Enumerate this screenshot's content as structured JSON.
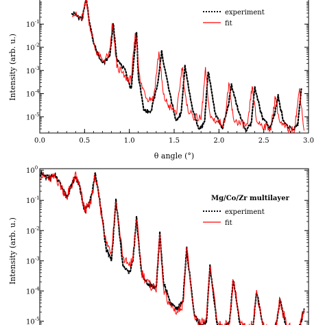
{
  "chart_data": [
    {
      "type": "line",
      "id": "top",
      "xlabel": "θ angle (°)",
      "ylabel": "Intensity (arb. u.)",
      "xlim": [
        0.0,
        3.0
      ],
      "ylim_log10": [
        -5.7,
        0.1
      ],
      "yscale": "log",
      "x_ticks": [
        "0.0",
        "0.5",
        "1.0",
        "1.5",
        "2.0",
        "2.5",
        "3.0"
      ],
      "y_ticks": [
        {
          "base": "10",
          "exp": "-5",
          "value": -5
        },
        {
          "base": "10",
          "exp": "-4",
          "value": -4
        },
        {
          "base": "10",
          "exp": "-3",
          "value": -3
        },
        {
          "base": "10",
          "exp": "-2",
          "value": -2
        },
        {
          "base": "10",
          "exp": "-1",
          "value": -1
        }
      ],
      "legend": {
        "position": "top-right",
        "entries": [
          "experiment",
          "fit"
        ]
      },
      "series": [
        {
          "name": "experiment",
          "style": "dotted",
          "color": "#000000",
          "x": [
            0.36,
            0.47,
            0.52,
            0.55,
            0.6,
            0.7,
            0.78,
            0.82,
            0.86,
            0.95,
            1.02,
            1.08,
            1.1,
            1.16,
            1.24,
            1.32,
            1.36,
            1.44,
            1.52,
            1.58,
            1.62,
            1.7,
            1.78,
            1.84,
            1.88,
            1.96,
            2.04,
            2.1,
            2.14,
            2.22,
            2.3,
            2.36,
            2.4,
            2.48,
            2.57,
            2.62,
            2.66,
            2.72,
            2.82,
            2.88,
            2.92
          ],
          "y_log10": [
            -0.5,
            -0.8,
            0.1,
            -0.8,
            -1.8,
            -2.7,
            -2.4,
            -1.0,
            -2.5,
            -3.0,
            -3.8,
            -1.3,
            -3.2,
            -4.7,
            -4.8,
            -3.5,
            -2.2,
            -3.8,
            -5.2,
            -4.8,
            -2.8,
            -4.6,
            -5.6,
            -5.2,
            -3.0,
            -4.9,
            -5.5,
            -4.6,
            -3.6,
            -4.8,
            -5.6,
            -5.3,
            -3.7,
            -5.0,
            -5.5,
            -4.9,
            -4.1,
            -5.2,
            -5.6,
            -5.3,
            -3.8
          ]
        },
        {
          "name": "fit",
          "style": "solid",
          "color": "#ff0000",
          "x": [
            0.36,
            0.47,
            0.52,
            0.55,
            0.62,
            0.7,
            0.78,
            0.81,
            0.86,
            0.95,
            1.02,
            1.07,
            1.12,
            1.2,
            1.27,
            1.33,
            1.38,
            1.45,
            1.53,
            1.59,
            1.64,
            1.72,
            1.8,
            1.85,
            1.9,
            1.98,
            2.06,
            2.11,
            2.16,
            2.24,
            2.32,
            2.37,
            2.42,
            2.5,
            2.58,
            2.63,
            2.68,
            2.76,
            2.84,
            2.9,
            2.95
          ],
          "y_log10": [
            -0.5,
            -0.8,
            0.1,
            -0.9,
            -2.1,
            -2.6,
            -2.3,
            -1.0,
            -2.8,
            -3.3,
            -3.4,
            -1.3,
            -3.5,
            -4.2,
            -4.2,
            -2.2,
            -4.1,
            -4.6,
            -4.8,
            -2.8,
            -4.6,
            -5.0,
            -5.1,
            -3.0,
            -5.0,
            -5.2,
            -5.3,
            -3.6,
            -5.1,
            -5.3,
            -5.4,
            -3.7,
            -5.2,
            -5.4,
            -5.5,
            -4.1,
            -5.3,
            -5.5,
            -5.6,
            -3.8,
            -5.6
          ]
        }
      ]
    },
    {
      "type": "line",
      "id": "bottom",
      "ylabel": "Intensity (arb. u.)",
      "annotation": "Mg/Co/Zr multilayer",
      "xlim": [
        0.0,
        3.0
      ],
      "ylim_log10": [
        -5.4,
        0.05
      ],
      "yscale": "log",
      "y_ticks": [
        {
          "base": "10",
          "exp": "0",
          "value": 0
        },
        {
          "base": "10",
          "exp": "-1",
          "value": -1
        },
        {
          "base": "10",
          "exp": "-2",
          "value": -2
        },
        {
          "base": "10",
          "exp": "-3",
          "value": -3
        },
        {
          "base": "10",
          "exp": "-4",
          "value": -4
        },
        {
          "base": "10",
          "exp": "-5",
          "value": -5
        }
      ],
      "legend": {
        "position": "right",
        "entries": [
          "experiment",
          "fit"
        ]
      },
      "series": [
        {
          "name": "experiment",
          "style": "dotted",
          "color": "#000000",
          "x": [
            0.0,
            0.1,
            0.18,
            0.26,
            0.3,
            0.34,
            0.4,
            0.44,
            0.5,
            0.56,
            0.62,
            0.68,
            0.74,
            0.8,
            0.85,
            0.93,
            1.0,
            1.04,
            1.08,
            1.14,
            1.22,
            1.3,
            1.34,
            1.38,
            1.46,
            1.54,
            1.6,
            1.64,
            1.72,
            1.8,
            1.86,
            1.9,
            1.98,
            2.06,
            2.12,
            2.16,
            2.24,
            2.32,
            2.38,
            2.42,
            2.5,
            2.58,
            2.64,
            2.68,
            2.76,
            2.84,
            2.9,
            2.95
          ],
          "y_log10": [
            -0.1,
            -0.25,
            -0.2,
            -0.6,
            -0.9,
            -0.6,
            -0.2,
            -0.5,
            -1.3,
            -1.1,
            -0.1,
            -1.2,
            -2.6,
            -3.0,
            -1.0,
            -3.2,
            -3.4,
            -3.0,
            -1.6,
            -3.5,
            -3.8,
            -3.9,
            -2.1,
            -3.7,
            -4.4,
            -4.6,
            -4.3,
            -2.6,
            -4.7,
            -5.2,
            -5.0,
            -3.2,
            -5.1,
            -5.3,
            -5.0,
            -3.6,
            -5.2,
            -5.4,
            -5.2,
            -4.0,
            -5.3,
            -5.4,
            -5.1,
            -4.3,
            -5.3,
            -5.4,
            -5.2,
            -4.6
          ]
        },
        {
          "name": "fit",
          "style": "solid",
          "color": "#ff0000",
          "x": [
            0.0,
            0.1,
            0.18,
            0.26,
            0.3,
            0.34,
            0.4,
            0.44,
            0.5,
            0.56,
            0.62,
            0.68,
            0.74,
            0.8,
            0.85,
            0.93,
            1.0,
            1.04,
            1.08,
            1.14,
            1.22,
            1.3,
            1.34,
            1.38,
            1.46,
            1.54,
            1.6,
            1.64,
            1.72,
            1.8,
            1.86,
            1.9,
            1.98,
            2.06,
            2.12,
            2.16,
            2.24,
            2.32,
            2.38,
            2.42,
            2.5,
            2.58,
            2.64,
            2.68,
            2.76,
            2.84,
            2.9,
            2.95
          ],
          "y_log10": [
            -0.15,
            -0.3,
            -0.25,
            -0.65,
            -0.9,
            -0.6,
            -0.2,
            -0.5,
            -1.3,
            -1.2,
            -0.2,
            -1.3,
            -2.4,
            -2.7,
            -1.0,
            -2.9,
            -3.2,
            -2.9,
            -1.6,
            -3.4,
            -3.8,
            -3.9,
            -2.1,
            -4.0,
            -4.5,
            -4.7,
            -4.4,
            -2.6,
            -4.8,
            -5.1,
            -5.0,
            -3.2,
            -5.0,
            -5.2,
            -5.0,
            -3.6,
            -5.1,
            -5.3,
            -5.1,
            -4.0,
            -5.2,
            -5.3,
            -5.1,
            -4.3,
            -5.2,
            -5.3,
            -5.2,
            -4.6
          ]
        }
      ]
    }
  ]
}
